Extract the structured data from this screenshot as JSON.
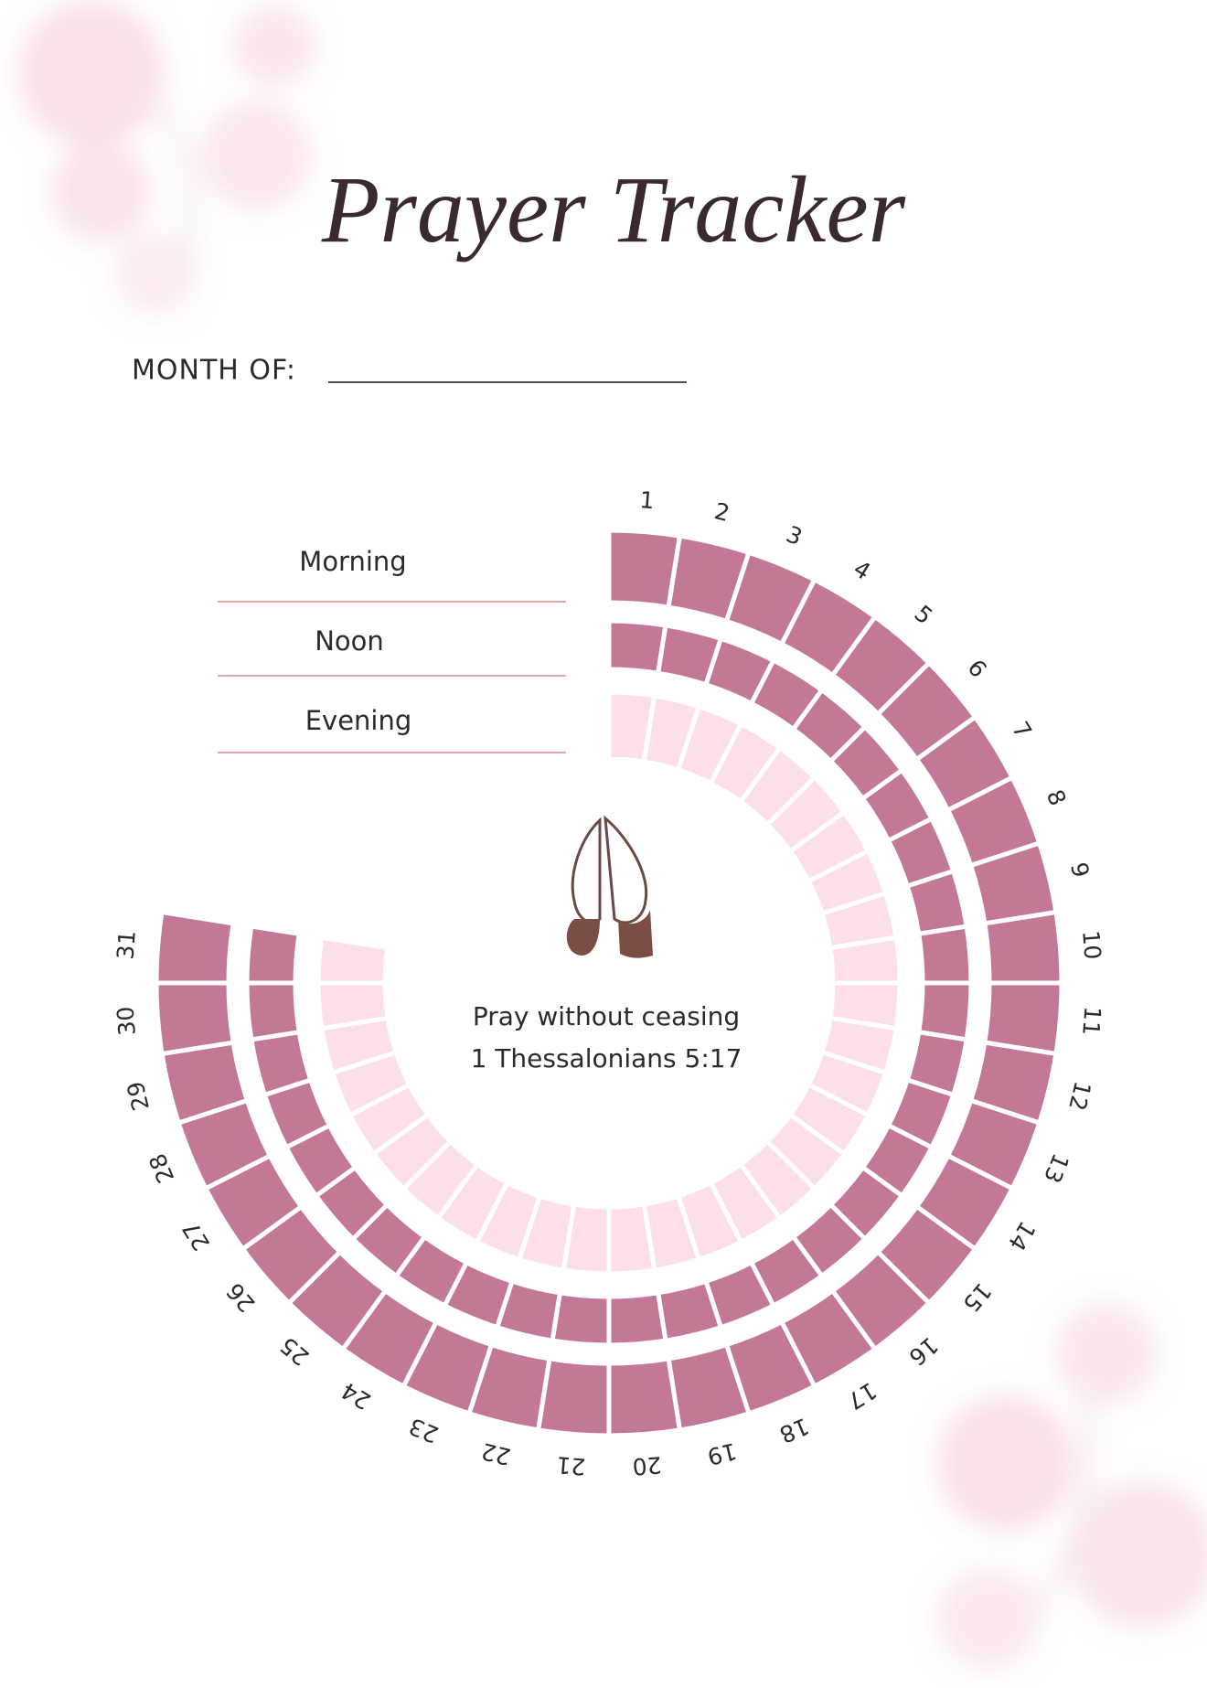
{
  "title": "Prayer Tracker",
  "month_label": "MONTH OF:",
  "times": [
    "Morning",
    "Noon",
    "Evening"
  ],
  "days": [
    1,
    2,
    3,
    4,
    5,
    6,
    7,
    8,
    9,
    10,
    11,
    12,
    13,
    14,
    15,
    16,
    17,
    18,
    19,
    20,
    21,
    22,
    23,
    24,
    25,
    26,
    27,
    28,
    29,
    30,
    31
  ],
  "verse": {
    "text": "Pray without ceasing",
    "reference": "1 Thessalonians 5:17"
  }
}
